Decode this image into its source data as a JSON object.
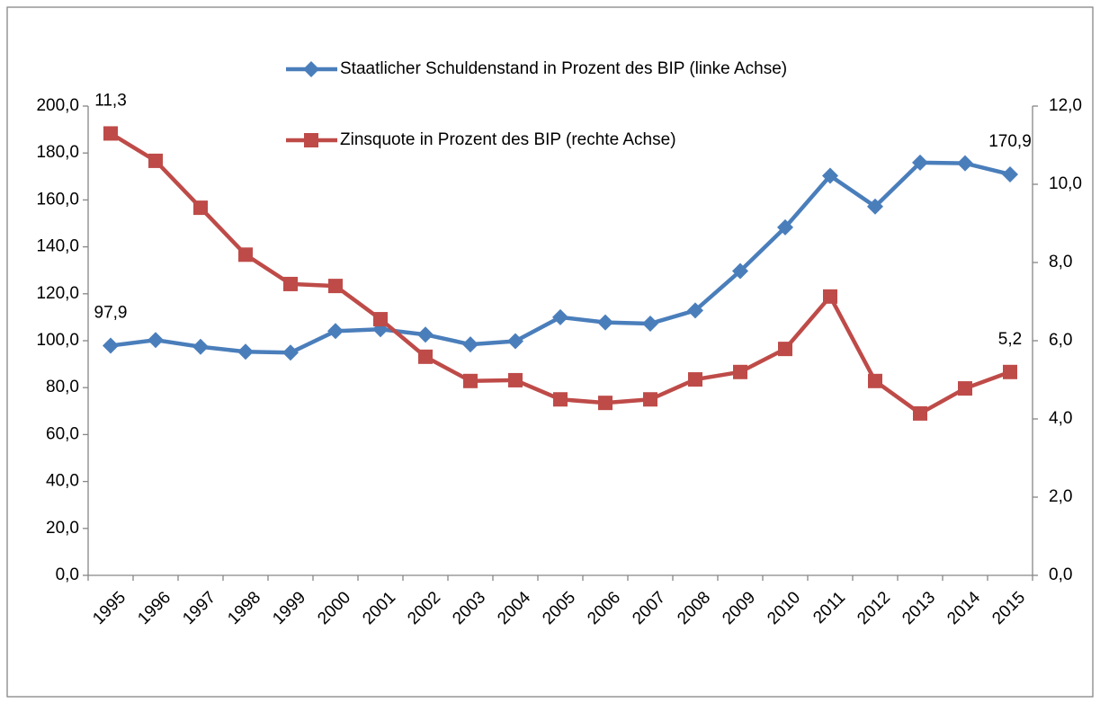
{
  "chart_data": {
    "type": "line",
    "categories": [
      "1995",
      "1996",
      "1997",
      "1998",
      "1999",
      "2000",
      "2001",
      "2002",
      "2003",
      "2004",
      "2005",
      "2006",
      "2007",
      "2008",
      "2009",
      "2010",
      "2011",
      "2012",
      "2013",
      "2014",
      "2015"
    ],
    "series": [
      {
        "name": "Staatlicher Schuldenstand in Prozent des BIP (linke Achse)",
        "color": "#4a7ebb",
        "marker": "diamond",
        "axis": "y",
        "values": [
          97.9,
          100.3,
          97.4,
          95.3,
          94.9,
          104.1,
          104.9,
          102.6,
          98.4,
          99.8,
          110.0,
          107.8,
          107.3,
          112.9,
          129.7,
          148.3,
          170.3,
          157.2,
          175.9,
          175.6,
          170.9
        ],
        "value_labels": [
          "97,9",
          null,
          null,
          null,
          null,
          null,
          null,
          null,
          null,
          null,
          null,
          null,
          null,
          null,
          null,
          null,
          null,
          null,
          null,
          null,
          "170,9"
        ]
      },
      {
        "name": "Zinsquote in Prozent des BIP (rechte Achse)",
        "color": "#be4b48",
        "marker": "square",
        "axis": "y2",
        "values": [
          11.3,
          10.6,
          9.4,
          8.2,
          7.45,
          7.4,
          6.55,
          5.59,
          4.97,
          4.99,
          4.5,
          4.41,
          4.5,
          5.01,
          5.2,
          5.79,
          7.13,
          4.97,
          4.14,
          4.78,
          5.2
        ],
        "value_labels": [
          "11,3",
          null,
          null,
          null,
          null,
          null,
          null,
          null,
          null,
          null,
          null,
          null,
          null,
          null,
          null,
          null,
          null,
          null,
          null,
          null,
          "5,2"
        ]
      }
    ],
    "ylim": [
      0,
      200
    ],
    "yticks": [
      {
        "value": 0,
        "label": "0,0"
      },
      {
        "value": 20,
        "label": "20,0"
      },
      {
        "value": 40,
        "label": "40,0"
      },
      {
        "value": 60,
        "label": "60,0"
      },
      {
        "value": 80,
        "label": "80,0"
      },
      {
        "value": 100,
        "label": "100,0"
      },
      {
        "value": 120,
        "label": "120,0"
      },
      {
        "value": 140,
        "label": "140,0"
      },
      {
        "value": 160,
        "label": "160,0"
      },
      {
        "value": 180,
        "label": "180,0"
      },
      {
        "value": 200,
        "label": "200,0"
      }
    ],
    "y2lim": [
      0,
      12
    ],
    "y2ticks": [
      {
        "value": 0,
        "label": "0,0"
      },
      {
        "value": 2,
        "label": "2,0"
      },
      {
        "value": 4,
        "label": "4,0"
      },
      {
        "value": 6,
        "label": "6,0"
      },
      {
        "value": 8,
        "label": "8,0"
      },
      {
        "value": 10,
        "label": "10,0"
      },
      {
        "value": 12,
        "label": "12,0"
      }
    ],
    "legend": "top",
    "grid": false
  }
}
